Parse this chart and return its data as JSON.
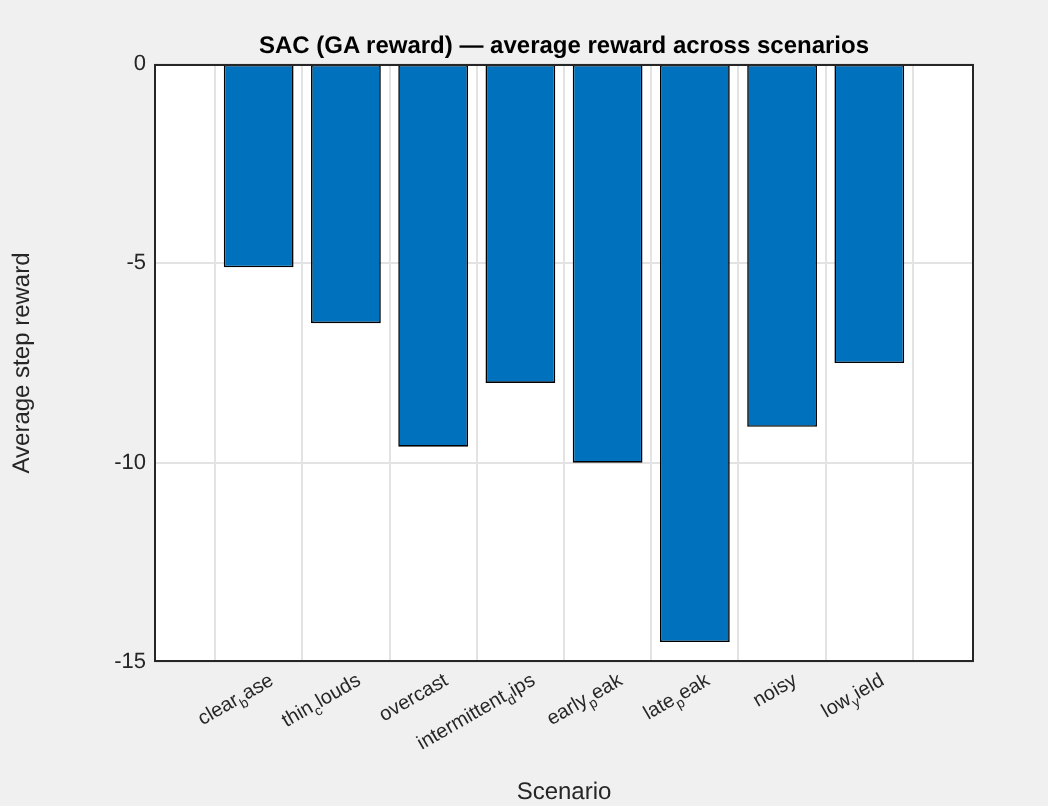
{
  "chart_data": {
    "type": "bar",
    "title": "SAC (GA reward) — average reward across scenarios",
    "xlabel": "Scenario",
    "ylabel": "Average step reward",
    "categories": [
      "clear$_{b}$ase",
      "thin$_{c}$louds",
      "overcast",
      "intermittent$_{d}$ips",
      "early$_{p}$eak",
      "late$_{p}$eak",
      "noisy",
      "low$_{y}$ield"
    ],
    "values": [
      -5.1,
      -6.5,
      -9.6,
      -8.0,
      -10.0,
      -14.5,
      -9.1,
      -7.5
    ],
    "color": "#0072bd",
    "ylim": [
      -15,
      0
    ],
    "yticks": [
      -15,
      -10,
      -5,
      0
    ],
    "grid": true
  }
}
